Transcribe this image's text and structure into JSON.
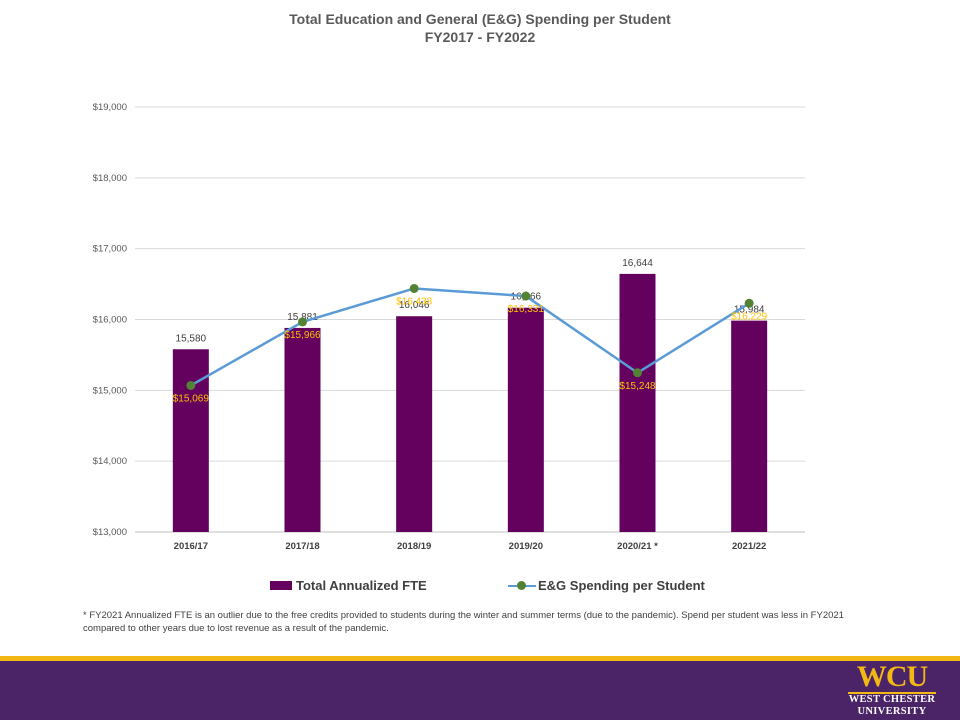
{
  "title": {
    "line1": "Total Education and General (E&G) Spending per Student",
    "line2": "FY2017 - FY2022"
  },
  "chart_data": {
    "type": "bar",
    "categories": [
      "2016/17",
      "2017/18",
      "2018/19",
      "2019/20",
      "2020/21 *",
      "2021/22"
    ],
    "series": [
      {
        "name": "Total Annualized FTE",
        "type": "bar",
        "values": [
          15580,
          15881,
          16046,
          16166,
          16644,
          15984
        ],
        "labels": [
          "15,580",
          "15,881",
          "16,046",
          "16,166",
          "16,644",
          "15,984"
        ],
        "color": "#64005e"
      },
      {
        "name": "E&G Spending per Student",
        "type": "line",
        "values": [
          15069,
          15966,
          16438,
          16331,
          15248,
          16229
        ],
        "labels": [
          "$15,069",
          "$15,966",
          "$16,438",
          "$16,331",
          "$15,248",
          "$16,229"
        ],
        "color": "#5b9bd5",
        "marker_color": "#548235",
        "label_color": "#ffc000"
      }
    ],
    "ylim": [
      13000,
      19000
    ],
    "yticks": [
      13000,
      14000,
      15000,
      16000,
      17000,
      18000,
      19000
    ],
    "ytick_labels": [
      "$13,000",
      "$14,000",
      "$15,000",
      "$16,000",
      "$17,000",
      "$18,000",
      "$19,000"
    ],
    "grid": true,
    "legend": "bottom"
  },
  "footnote": "* FY2021 Annualized FTE is an outlier due to the free credits provided to students during the winter and summer terms (due to the pandemic). Spend per student was less in FY2021 compared to other years due to lost revenue as a result of the pandemic.",
  "logo": {
    "main": "WCU",
    "line1": "WEST CHESTER",
    "line2": "UNIVERSITY"
  },
  "colors": {
    "footer_purple": "#4b2467",
    "footer_gold": "#f2b814"
  }
}
